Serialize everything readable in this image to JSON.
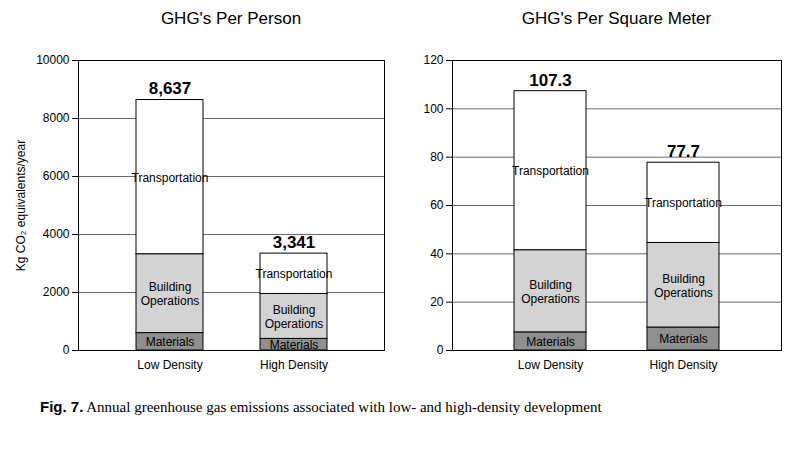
{
  "caption_label": "Fig. 7.",
  "caption": "Annual greenhouse gas emissions associated with low- and high-density development",
  "chart_data": [
    {
      "type": "bar",
      "stacked": true,
      "title": "GHG's Per Person",
      "ylabel": "Kg CO₂ equivalents/year",
      "categories": [
        "Low Density",
        "High Density"
      ],
      "series": [
        {
          "name": "Materials",
          "color": "#8f8f8f",
          "values": [
            600,
            400
          ]
        },
        {
          "name": "Building Operations",
          "color": "#d3d3d3",
          "values": [
            2720,
            1550
          ]
        },
        {
          "name": "Transportation",
          "color": "#ffffff",
          "values": [
            5317,
            1391
          ]
        }
      ],
      "totals": [
        8637,
        3341
      ],
      "total_labels": [
        "8,637",
        "3,341"
      ],
      "ylim": [
        0,
        10000
      ],
      "yticks": [
        0,
        2000,
        4000,
        6000,
        8000,
        10000
      ],
      "grid": true
    },
    {
      "type": "bar",
      "stacked": true,
      "title": "GHG's Per Square Meter",
      "categories": [
        "Low Density",
        "High Density"
      ],
      "series": [
        {
          "name": "Materials",
          "color": "#8f8f8f",
          "values": [
            7.5,
            9.5
          ]
        },
        {
          "name": "Building Operations",
          "color": "#d3d3d3",
          "values": [
            34,
            35
          ]
        },
        {
          "name": "Transportation",
          "color": "#ffffff",
          "values": [
            65.8,
            33.2
          ]
        }
      ],
      "totals": [
        107.3,
        77.7
      ],
      "total_labels": [
        "107.3",
        "77.7"
      ],
      "ylim": [
        0,
        120
      ],
      "yticks": [
        0,
        20,
        40,
        60,
        80,
        100,
        120
      ],
      "grid": true
    }
  ]
}
